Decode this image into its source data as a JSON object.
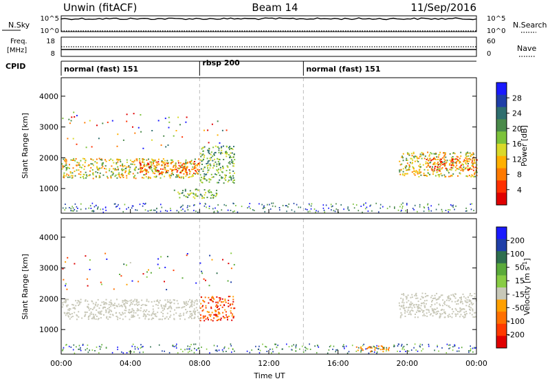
{
  "header": {
    "station": "Unwin (fitACF)",
    "beam": "Beam 14",
    "date": "11/Sep/2016"
  },
  "strips": {
    "nsky_label": "N.Sky",
    "nsky_ticks": [
      "10^5",
      "10^0"
    ],
    "nsearch_label": "N.Search",
    "nsearch_ticks": [
      "10^5",
      "10^0"
    ],
    "freq_label_line1": "Freq.",
    "freq_label_line2": "[MHz]",
    "freq_ticks": [
      "18",
      "8"
    ],
    "nave_label": "Nave",
    "nave_ticks": [
      "60",
      "0"
    ],
    "cpid_label": "CPID",
    "cpid_segments": [
      {
        "label": "normal (fast) 151",
        "start_hour": 0,
        "end_hour": 8
      },
      {
        "label": "rbsp 200",
        "start_hour": 8,
        "end_hour": 14
      },
      {
        "label": "normal (fast) 151",
        "start_hour": 14,
        "end_hour": 24
      }
    ]
  },
  "colors": {
    "power_scale": [
      "#1a1aff",
      "#1f3fa8",
      "#2e6e6e",
      "#4a8a4a",
      "#7cc23a",
      "#d9d92a",
      "#ffb000",
      "#ff7a00",
      "#ff3000",
      "#e00000"
    ],
    "velocity_scale": [
      "#1a1aff",
      "#1f3fa8",
      "#2e6e4e",
      "#5aaa3a",
      "#88cc44",
      "#c8c8b8",
      "#ffa000",
      "#ff7000",
      "#ff3a00",
      "#e00000"
    ],
    "ground_scatter": "#c8c8bc"
  },
  "chart_data": [
    {
      "type": "heatmap",
      "title": "",
      "quantity": "Power",
      "colorbar_label": "Power [dB]",
      "colorbar_ticks": [
        "28",
        "24",
        "20",
        "16",
        "12",
        "8",
        "4"
      ],
      "ylabel": "Slant Range [km]",
      "yticks": [
        "4000",
        "3000",
        "2000",
        "1000"
      ],
      "ylim": [
        200,
        4600
      ],
      "xlim": [
        0,
        24
      ],
      "scatter_regions": [
        {
          "t0": 0.0,
          "t1": 8.0,
          "r0": 1350,
          "r1": 2000,
          "level": "high"
        },
        {
          "t0": 4.5,
          "t1": 8.0,
          "r0": 1500,
          "r1": 1900,
          "level": "max"
        },
        {
          "t0": 8.0,
          "t1": 10.0,
          "r0": 1200,
          "r1": 2400,
          "level": "mid"
        },
        {
          "t0": 6.5,
          "t1": 9.0,
          "r0": 700,
          "r1": 1000,
          "level": "mid"
        },
        {
          "t0": 19.5,
          "t1": 24.0,
          "r0": 1400,
          "r1": 2200,
          "level": "high"
        },
        {
          "t0": 21.0,
          "t1": 24.0,
          "r0": 1600,
          "r1": 2000,
          "level": "max"
        }
      ]
    },
    {
      "type": "heatmap",
      "title": "",
      "quantity": "Velocity",
      "colorbar_label": "Velocity [m s^-1]",
      "colorbar_ticks": [
        "200",
        "100",
        "50",
        "15",
        "-15",
        "-50",
        "-100",
        "-200"
      ],
      "ylabel": "Slant Range [km]",
      "yticks": [
        "4000",
        "3000",
        "2000",
        "1000"
      ],
      "xlabel": "Time UT",
      "xticks": [
        "00:00",
        "04:00",
        "08:00",
        "12:00",
        "16:00",
        "20:00",
        "00:00"
      ],
      "ylim": [
        200,
        4600
      ],
      "xlim": [
        0,
        24
      ],
      "scatter_regions": [
        {
          "t0": 0.0,
          "t1": 8.0,
          "r0": 1350,
          "r1": 2000,
          "level": "ground"
        },
        {
          "t0": 8.0,
          "t1": 10.0,
          "r0": 1300,
          "r1": 2100,
          "level": "neg_high"
        },
        {
          "t0": 19.5,
          "t1": 24.0,
          "r0": 1400,
          "r1": 2200,
          "level": "ground"
        },
        {
          "t0": 17.0,
          "t1": 19.0,
          "r0": 300,
          "r1": 500,
          "level": "neg_mid"
        }
      ]
    }
  ]
}
